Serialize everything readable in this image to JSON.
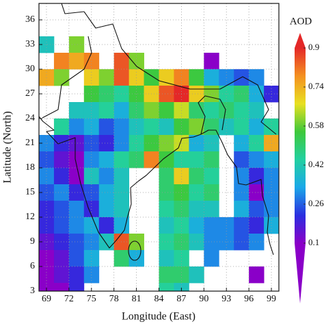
{
  "chart_data": {
    "type": "heatmap",
    "xlabel": "Longitude (East)",
    "ylabel": "Latitude (North)",
    "xlim": [
      68,
      100
    ],
    "ylim": [
      3,
      38
    ],
    "xticks": [
      69,
      72,
      75,
      78,
      81,
      84,
      87,
      90,
      93,
      96,
      99
    ],
    "yticks": [
      3,
      6,
      9,
      12,
      15,
      18,
      21,
      24,
      27,
      30,
      33,
      36
    ],
    "grid": true,
    "x_bins": [
      68,
      70,
      72,
      74,
      76,
      78,
      80,
      82,
      84,
      86,
      88,
      90,
      92,
      94,
      96,
      98,
      100
    ],
    "y_bins": [
      38,
      36,
      34,
      32,
      30,
      28,
      26,
      24,
      22,
      20,
      18,
      16,
      14,
      12,
      10,
      8,
      6,
      4,
      3
    ],
    "values": [
      [
        null,
        null,
        null,
        null,
        null,
        null,
        null,
        null,
        null,
        null,
        null,
        null,
        null,
        null,
        null,
        null
      ],
      [
        null,
        null,
        null,
        null,
        null,
        null,
        null,
        null,
        null,
        null,
        null,
        null,
        null,
        null,
        null,
        null
      ],
      [
        0.4,
        null,
        0.6,
        null,
        null,
        null,
        null,
        null,
        null,
        null,
        null,
        null,
        null,
        null,
        null,
        null
      ],
      [
        null,
        0.8,
        0.75,
        0.8,
        null,
        0.85,
        0.6,
        null,
        null,
        null,
        null,
        0.1,
        null,
        null,
        null,
        null
      ],
      [
        0.75,
        0.6,
        null,
        0.7,
        0.6,
        0.85,
        0.7,
        0.55,
        0.7,
        0.8,
        0.55,
        0.35,
        0.3,
        0.25,
        0.3,
        null
      ],
      [
        null,
        null,
        null,
        0.55,
        0.5,
        0.45,
        0.55,
        0.7,
        0.85,
        0.9,
        0.7,
        0.6,
        0.45,
        0.5,
        0.35,
        0.2
      ],
      [
        null,
        null,
        0.4,
        0.4,
        0.45,
        0.35,
        0.5,
        0.6,
        0.55,
        0.65,
        0.5,
        0.45,
        0.5,
        0.45,
        0.4,
        null
      ],
      [
        null,
        0.45,
        0.3,
        0.35,
        0.25,
        0.3,
        0.4,
        0.45,
        0.4,
        0.55,
        0.6,
        0.5,
        0.4,
        0.45,
        0.35,
        0.45
      ],
      [
        0.3,
        0.2,
        0.15,
        0.25,
        0.2,
        0.3,
        0.45,
        0.55,
        0.6,
        0.65,
        0.35,
        0.4,
        null,
        0.35,
        0.45,
        0.75
      ],
      [
        0.25,
        0.15,
        0.1,
        0.3,
        0.35,
        0.45,
        0.5,
        0.8,
        0.55,
        0.45,
        0.45,
        0.5,
        null,
        0.25,
        0.3,
        0.35
      ],
      [
        0.3,
        0.2,
        0.1,
        0.4,
        0.3,
        0.4,
        null,
        null,
        0.5,
        0.7,
        0.5,
        0.45,
        null,
        0.3,
        0.2,
        0.3
      ],
      [
        0.25,
        0.3,
        0.2,
        0.25,
        0.35,
        0.4,
        null,
        null,
        0.5,
        0.55,
        0.45,
        0.5,
        null,
        0.3,
        0.1,
        0.3
      ],
      [
        0.2,
        0.25,
        0.3,
        0.2,
        0.35,
        0.4,
        null,
        null,
        0.45,
        0.5,
        0.4,
        0.4,
        null,
        0.35,
        0.25,
        0.3
      ],
      [
        0.2,
        0.25,
        0.3,
        0.35,
        0.2,
        0.35,
        null,
        null,
        0.4,
        0.45,
        0.35,
        0.3,
        0.3,
        0.25,
        0.2,
        0.35
      ],
      [
        0.15,
        0.2,
        0.25,
        0.3,
        0.4,
        0.85,
        0.6,
        null,
        0.45,
        0.5,
        0.4,
        0.3,
        0.3,
        0.25,
        0.3,
        null
      ],
      [
        0.1,
        0.15,
        0.25,
        0.35,
        null,
        0.5,
        0.35,
        null,
        0.4,
        0.45,
        null,
        0.3,
        null,
        null,
        null,
        null
      ],
      [
        0.1,
        0.15,
        0.2,
        0.3,
        null,
        null,
        null,
        null,
        0.5,
        0.5,
        0.4,
        null,
        null,
        null,
        0.1,
        null
      ],
      [
        0.1,
        0.1,
        0.2,
        null,
        null,
        null,
        null,
        null,
        0.45,
        0.4,
        null,
        null,
        null,
        null,
        null,
        null
      ]
    ],
    "colorbar": {
      "label": "AOD",
      "lim": [
        0.1,
        0.9
      ],
      "ticks": [
        0.1,
        0.26,
        0.42,
        0.58,
        0.74,
        0.9
      ],
      "colors": [
        "#8a00c8",
        "#2a2ee0",
        "#1aa8e8",
        "#22d0a0",
        "#3ec83a",
        "#e8e020",
        "#f49020",
        "#e42828"
      ]
    }
  }
}
